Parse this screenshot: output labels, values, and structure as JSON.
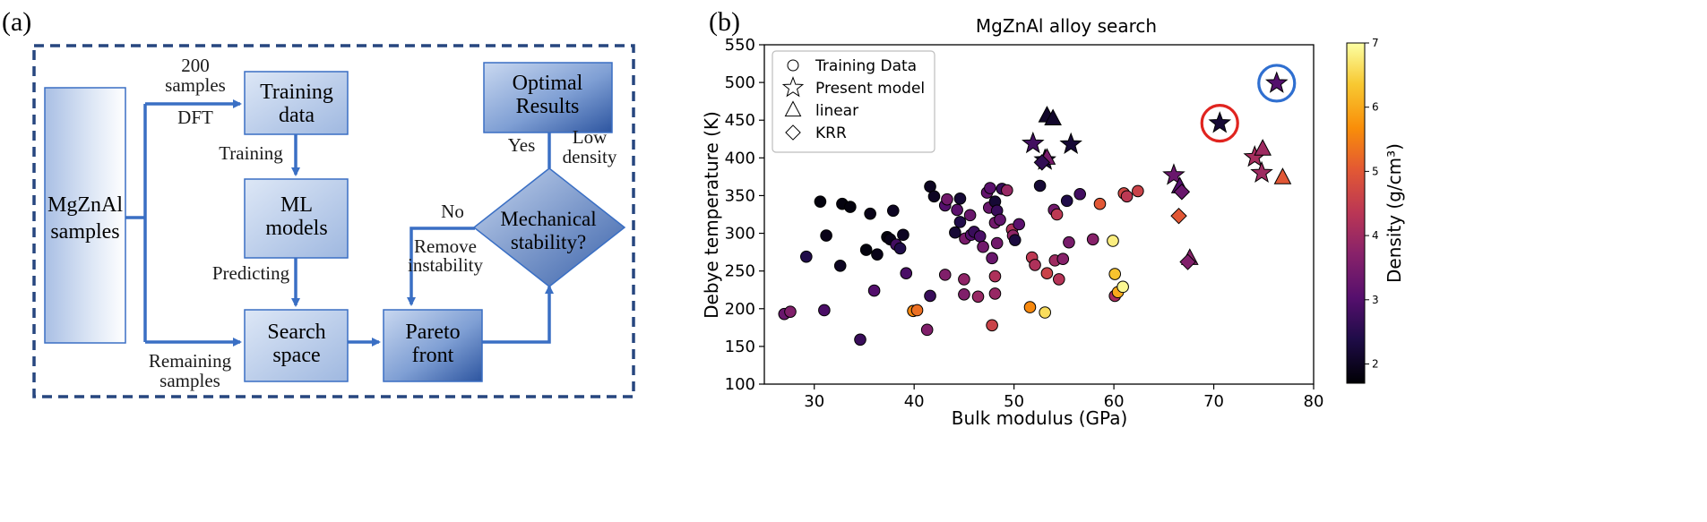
{
  "panel_a": {
    "label": "(a)",
    "boxes": {
      "samples": [
        "MgZnAl",
        "samples"
      ],
      "training": [
        "Training",
        "data"
      ],
      "ml": [
        "ML",
        "models"
      ],
      "search": [
        "Search",
        "space"
      ],
      "pareto": [
        "Pareto",
        "front"
      ],
      "optimal": [
        "Optimal",
        "Results"
      ],
      "mechanical": [
        "Mechanical",
        "stability?"
      ]
    },
    "edge_labels": {
      "top_count": "200",
      "top_samples": "samples",
      "dft": "DFT",
      "training": "Training",
      "predicting": "Predicting",
      "remaining_1": "Remaining",
      "remaining_2": "samples",
      "no": "No",
      "remove_1": "Remove",
      "remove_2": "instability",
      "yes": "Yes",
      "low_1": "Low",
      "low_2": "density"
    },
    "colors": {
      "line": "#3a6fc4",
      "border": "#27467f",
      "box_light": "#cfdcf1",
      "box_dark": "#3f66ad"
    }
  },
  "panel_b": {
    "label": "(b)",
    "colorbar": {
      "label": "Density (g/cm³)",
      "ticks": [
        "2",
        "3",
        "4",
        "5",
        "6",
        "7"
      ]
    },
    "legend": [
      "Training Data",
      "Present model",
      "linear",
      "KRR"
    ]
  },
  "chart_data": {
    "type": "scatter",
    "title": "MgZnAl alloy search",
    "xlabel": "Bulk modulus (GPa)",
    "ylabel": "Debye temperature (K)",
    "xlim": [
      25,
      80
    ],
    "ylim": [
      100,
      550
    ],
    "xticks": [
      30,
      40,
      50,
      60,
      70,
      80
    ],
    "yticks": [
      100,
      150,
      200,
      250,
      300,
      350,
      400,
      450,
      500,
      550
    ],
    "color_by": "density",
    "color_range": [
      1.7,
      7.0
    ],
    "series": [
      {
        "name": "Training Data",
        "marker": "circle",
        "points": [
          [
            27.0,
            193,
            3.3
          ],
          [
            27.6,
            196,
            3.6
          ],
          [
            29.2,
            269,
            2.4
          ],
          [
            30.6,
            342,
            1.8
          ],
          [
            31.2,
            297,
            1.9
          ],
          [
            31.0,
            198,
            2.9
          ],
          [
            32.6,
            257,
            2.0
          ],
          [
            32.8,
            339,
            1.8
          ],
          [
            33.6,
            335,
            1.8
          ],
          [
            34.6,
            159,
            2.7
          ],
          [
            35.2,
            278,
            1.8
          ],
          [
            35.6,
            326,
            1.9
          ],
          [
            36.0,
            224,
            3.0
          ],
          [
            36.3,
            272,
            1.9
          ],
          [
            37.3,
            295,
            1.8
          ],
          [
            37.6,
            292,
            1.9
          ],
          [
            37.9,
            330,
            2.0
          ],
          [
            38.2,
            285,
            2.8
          ],
          [
            38.6,
            280,
            2.4
          ],
          [
            38.9,
            298,
            2.0
          ],
          [
            39.2,
            247,
            2.9
          ],
          [
            39.9,
            197,
            5.6
          ],
          [
            40.3,
            198,
            5.3
          ],
          [
            41.3,
            172,
            3.6
          ],
          [
            41.6,
            217,
            2.7
          ],
          [
            41.6,
            362,
            2.0
          ],
          [
            42.0,
            349,
            2.0
          ],
          [
            43.1,
            245,
            3.6
          ],
          [
            43.1,
            337,
            3.0
          ],
          [
            43.3,
            345,
            3.4
          ],
          [
            44.1,
            301,
            2.2
          ],
          [
            44.3,
            331,
            3.1
          ],
          [
            44.6,
            315,
            2.4
          ],
          [
            44.6,
            346,
            2.2
          ],
          [
            45.0,
            239,
            3.8
          ],
          [
            45.0,
            219,
            3.6
          ],
          [
            45.1,
            293,
            3.5
          ],
          [
            45.6,
            324,
            3.3
          ],
          [
            45.7,
            298,
            3.0
          ],
          [
            46.0,
            302,
            2.7
          ],
          [
            46.6,
            296,
            2.9
          ],
          [
            46.4,
            216,
            3.9
          ],
          [
            46.9,
            282,
            3.4
          ],
          [
            47.3,
            354,
            3.2
          ],
          [
            47.6,
            360,
            3.1
          ],
          [
            47.5,
            334,
            3.3
          ],
          [
            47.8,
            267,
            3.3
          ],
          [
            47.8,
            178,
            4.6
          ],
          [
            48.1,
            243,
            4.2
          ],
          [
            48.1,
            342,
            2.2
          ],
          [
            48.1,
            314,
            3.4
          ],
          [
            48.1,
            220,
            3.9
          ],
          [
            48.3,
            287,
            3.4
          ],
          [
            48.3,
            330,
            2.7
          ],
          [
            48.8,
            359,
            2.7
          ],
          [
            48.6,
            318,
            3.2
          ],
          [
            49.3,
            357,
            3.9
          ],
          [
            49.8,
            305,
            4.2
          ],
          [
            49.9,
            297,
            3.8
          ],
          [
            50.1,
            291,
            2.3
          ],
          [
            50.5,
            312,
            3.1
          ],
          [
            51.6,
            202,
            5.6
          ],
          [
            51.8,
            268,
            4.4
          ],
          [
            52.1,
            258,
            4.2
          ],
          [
            52.6,
            363,
            2.2
          ],
          [
            53.1,
            195,
            6.6
          ],
          [
            53.3,
            247,
            4.6
          ],
          [
            54.0,
            331,
            3.4
          ],
          [
            54.1,
            264,
            4.0
          ],
          [
            54.3,
            325,
            4.4
          ],
          [
            54.5,
            239,
            4.3
          ],
          [
            54.9,
            266,
            3.7
          ],
          [
            55.3,
            343,
            2.4
          ],
          [
            55.5,
            288,
            3.5
          ],
          [
            56.6,
            352,
            2.8
          ],
          [
            57.9,
            292,
            3.7
          ],
          [
            58.6,
            339,
            5.0
          ],
          [
            59.9,
            290,
            6.8
          ],
          [
            60.1,
            246,
            6.3
          ],
          [
            60.1,
            217,
            4.1
          ],
          [
            60.4,
            222,
            6.0
          ],
          [
            60.9,
            229,
            6.9
          ],
          [
            61.0,
            353,
            4.7
          ],
          [
            61.3,
            349,
            4.4
          ],
          [
            62.4,
            356,
            4.6
          ]
        ]
      },
      {
        "name": "Present model",
        "marker": "star",
        "points": [
          [
            51.9,
            419,
            2.8
          ],
          [
            53.1,
            397,
            2.3
          ],
          [
            55.7,
            418,
            2.2
          ],
          [
            66.0,
            377,
            3.3
          ],
          [
            70.6,
            446,
            2.2
          ],
          [
            74.1,
            401,
            4.1
          ],
          [
            74.8,
            380,
            4.0
          ],
          [
            76.3,
            499,
            3.0
          ]
        ]
      },
      {
        "name": "linear",
        "marker": "triangle",
        "points": [
          [
            53.3,
            456,
            2.1
          ],
          [
            53.9,
            452,
            2.1
          ],
          [
            53.3,
            400,
            3.5
          ],
          [
            66.6,
            362,
            3.0
          ],
          [
            67.6,
            267,
            3.7
          ],
          [
            74.9,
            412,
            4.0
          ],
          [
            76.9,
            374,
            5.0
          ]
        ]
      },
      {
        "name": "KRR",
        "marker": "diamond",
        "points": [
          [
            52.8,
            394,
            2.6
          ],
          [
            66.8,
            355,
            3.3
          ],
          [
            66.5,
            323,
            5.0
          ],
          [
            67.4,
            262,
            3.6
          ]
        ]
      }
    ],
    "highlights": [
      {
        "x": 70.6,
        "y": 446,
        "color": "#e0241f"
      },
      {
        "x": 76.3,
        "y": 499,
        "color": "#2f6fd0"
      }
    ]
  }
}
